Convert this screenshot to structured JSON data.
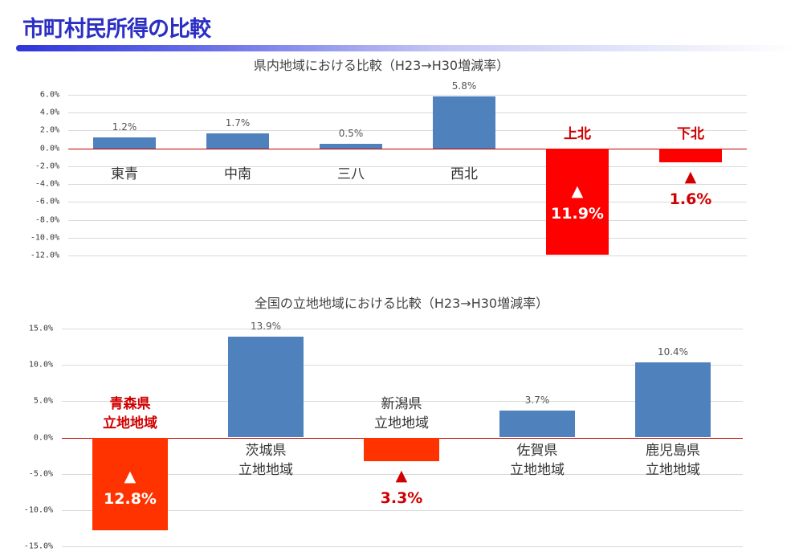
{
  "page_title": "市町村民所得の比較",
  "chart_data": [
    {
      "type": "bar",
      "title": "県内地域における比較（H23→H30増減率）",
      "ylim": [
        -12,
        6
      ],
      "ytick_step": 2,
      "ytick_labels": [
        "6.0%",
        "4.0%",
        "2.0%",
        "0.0%",
        "-2.0%",
        "-4.0%",
        "-6.0%",
        "-8.0%",
        "-10.0%",
        "-12.0%"
      ],
      "categories": [
        "東青",
        "中南",
        "三八",
        "西北",
        "上北",
        "下北"
      ],
      "values": [
        1.2,
        1.7,
        0.5,
        5.8,
        -11.9,
        -1.6
      ],
      "value_labels": [
        "1.2%",
        "1.7%",
        "0.5%",
        "5.8%",
        "11.9%",
        "1.6%"
      ],
      "decrease_marker": "▲",
      "colors": {
        "positive": "#4f81bd",
        "negative": "#ff0000",
        "highlight_text": "#d00000"
      }
    },
    {
      "type": "bar",
      "title": "全国の立地地域における比較（H23→H30増減率）",
      "ylim": [
        -15,
        15
      ],
      "ytick_step": 5,
      "ytick_labels": [
        "15.0%",
        "10.0%",
        "5.0%",
        "0.0%",
        "-5.0%",
        "-10.0%",
        "-15.0%"
      ],
      "categories": [
        "青森県\n立地地域",
        "茨城県\n立地地域",
        "新潟県\n立地地域",
        "佐賀県\n立地地域",
        "鹿児島県\n立地地域"
      ],
      "values": [
        -12.8,
        13.9,
        -3.3,
        3.7,
        10.4
      ],
      "value_labels": [
        "12.8%",
        "13.9%",
        "3.3%",
        "3.7%",
        "10.4%"
      ],
      "decrease_marker": "▲",
      "colors": {
        "positive": "#4f81bd",
        "negative": "#ff3300",
        "highlight_text": "#d00000"
      }
    }
  ]
}
